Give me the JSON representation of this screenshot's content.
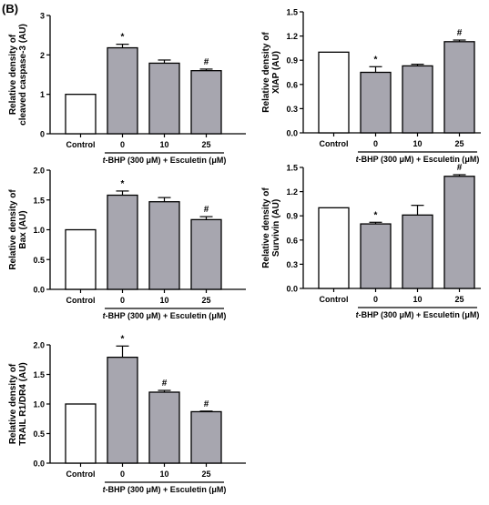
{
  "panel_label": "(B)",
  "colors": {
    "control_fill": "#ffffff",
    "treated_fill": "#a7a6af",
    "stroke": "#000000"
  },
  "chart_data": [
    {
      "type": "bar",
      "ylabel": [
        "Relative density of",
        "cleaved caspase-3 (AU)"
      ],
      "ylim": [
        0,
        3
      ],
      "yticks": [
        "0",
        "1",
        "2",
        "3"
      ],
      "categories": [
        "Control",
        "0",
        "10",
        "25"
      ],
      "values": [
        1.0,
        2.18,
        1.79,
        1.6
      ],
      "errors": [
        0,
        0.09,
        0.08,
        0.04
      ],
      "annotations": [
        "",
        "*",
        "",
        "#"
      ],
      "treatment_label": [
        "t",
        "-BHP (300 ",
        "μ",
        "M) + Esculetin (",
        "μ",
        "M)"
      ]
    },
    {
      "type": "bar",
      "ylabel": [
        "Relative density of",
        "XIAP (AU)"
      ],
      "ylim": [
        0,
        1.5
      ],
      "yticks": [
        "0.0",
        "0.3",
        "0.6",
        "0.9",
        "1.2",
        "1.5"
      ],
      "categories": [
        "Control",
        "0",
        "10",
        "25"
      ],
      "values": [
        1.0,
        0.75,
        0.83,
        1.13
      ],
      "errors": [
        0,
        0.07,
        0.02,
        0.02
      ],
      "annotations": [
        "",
        "*",
        "",
        "#"
      ],
      "treatment_label": [
        "t",
        "-BHP (300 ",
        "μ",
        "M) + Esculetin (",
        "μ",
        "M)"
      ]
    },
    {
      "type": "bar",
      "ylabel": [
        "Relative density of",
        "Bax (AU)"
      ],
      "ylim": [
        0,
        2.0
      ],
      "yticks": [
        "0.0",
        "0.5",
        "1.0",
        "1.5",
        "2.0"
      ],
      "categories": [
        "Control",
        "0",
        "10",
        "25"
      ],
      "values": [
        1.0,
        1.58,
        1.47,
        1.17
      ],
      "errors": [
        0,
        0.07,
        0.07,
        0.05
      ],
      "annotations": [
        "",
        "*",
        "",
        "#"
      ],
      "treatment_label": [
        "t",
        "-BHP (300 ",
        "μ",
        "M) + Esculetin (",
        "μ",
        "M)"
      ]
    },
    {
      "type": "bar",
      "ylabel": [
        "Relative density of",
        "Survivin (AU)"
      ],
      "ylim": [
        0,
        1.5
      ],
      "yticks": [
        "0.0",
        "0.3",
        "0.6",
        "0.9",
        "1.2",
        "1.5"
      ],
      "categories": [
        "Control",
        "0",
        "10",
        "25"
      ],
      "values": [
        1.0,
        0.8,
        0.91,
        1.39
      ],
      "errors": [
        0,
        0.02,
        0.12,
        0.02
      ],
      "annotations": [
        "",
        "*",
        "",
        "#"
      ],
      "treatment_label": [
        "t",
        "-BHP (300 ",
        "μ",
        "M) + Esculetin (",
        "μ",
        "M)"
      ]
    },
    {
      "type": "bar",
      "ylabel": [
        "Relative density of",
        "TRAIL R1/DR4 (AU)"
      ],
      "ylim": [
        0,
        2.0
      ],
      "yticks": [
        "0.0",
        "0.5",
        "1.0",
        "1.5",
        "2.0"
      ],
      "categories": [
        "Control",
        "0",
        "10",
        "25"
      ],
      "values": [
        1.0,
        1.79,
        1.2,
        0.87
      ],
      "errors": [
        0,
        0.19,
        0.03,
        0.01
      ],
      "annotations": [
        "",
        "*",
        "#",
        "#"
      ],
      "treatment_label": [
        "t",
        "-BHP (300 ",
        "μ",
        "M) + Esculetin (",
        "μ",
        "M)"
      ]
    }
  ]
}
